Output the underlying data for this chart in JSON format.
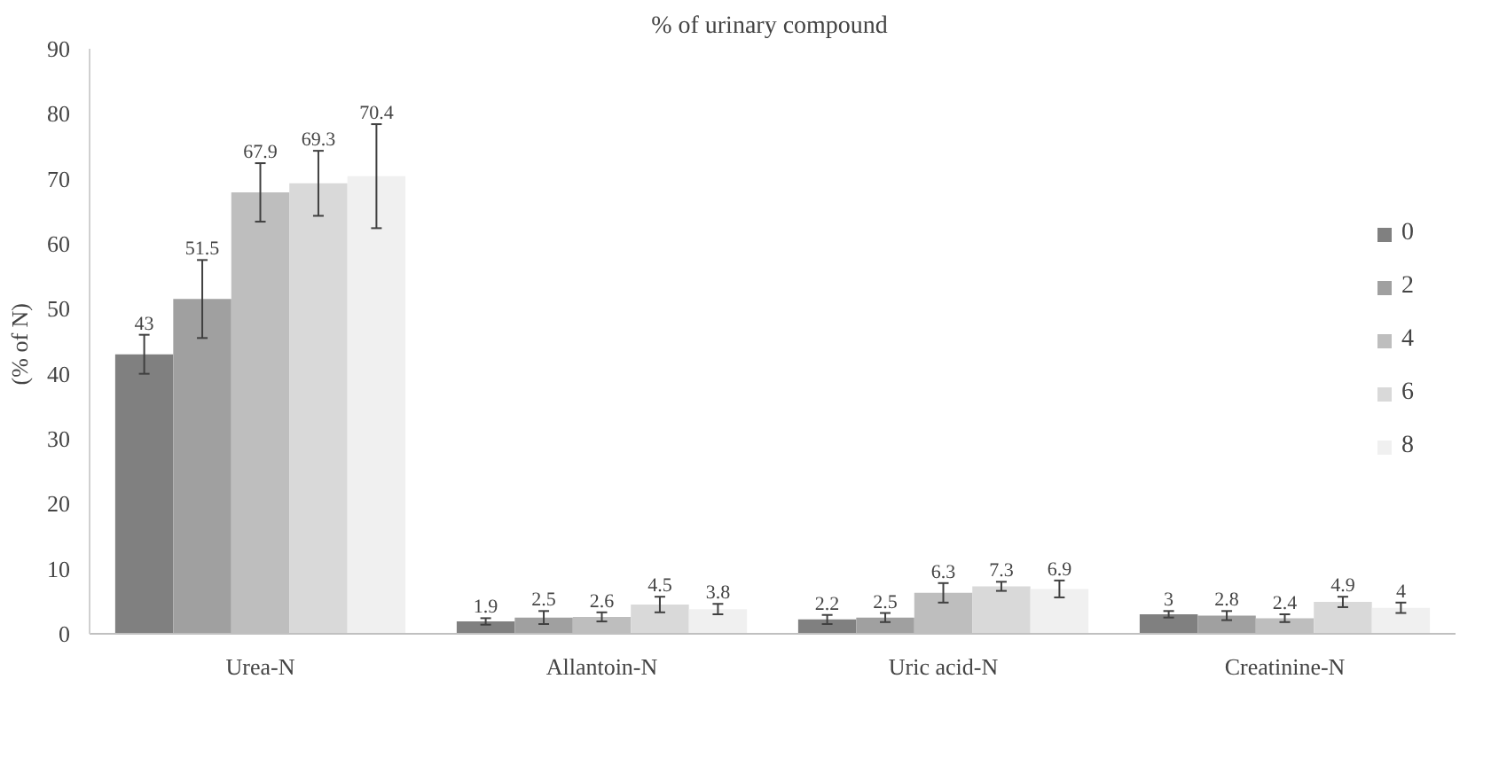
{
  "chart_data": {
    "type": "bar",
    "title": "% of urinary  compound",
    "ylabel": "(% of  N)",
    "categories": [
      "Urea-N",
      "Allantoin-N",
      "Uric acid-N",
      "Creatinine-N"
    ],
    "ylim": [
      0,
      90
    ],
    "yticks": [
      0,
      10,
      20,
      30,
      40,
      50,
      60,
      70,
      80,
      90
    ],
    "grid": false,
    "legend": "right",
    "data_labels": true,
    "series": [
      {
        "name": "0",
        "color": "#808080",
        "values": [
          43,
          1.9,
          2.2,
          3
        ],
        "errors": [
          3,
          0.5,
          0.7,
          0.5
        ]
      },
      {
        "name": "2",
        "color": "#a0a0a0",
        "values": [
          51.5,
          2.5,
          2.5,
          2.8
        ],
        "errors": [
          6,
          1,
          0.7,
          0.7
        ]
      },
      {
        "name": "4",
        "color": "#bebebe",
        "values": [
          67.9,
          2.6,
          6.3,
          2.4
        ],
        "errors": [
          4.5,
          0.7,
          1.5,
          0.6
        ]
      },
      {
        "name": "6",
        "color": "#d9d9d9",
        "values": [
          69.3,
          4.5,
          7.3,
          4.9
        ],
        "errors": [
          5,
          1.2,
          0.7,
          0.8
        ]
      },
      {
        "name": "8",
        "color": "#f0f0f0",
        "values": [
          70.4,
          3.8,
          6.9,
          4
        ],
        "errors": [
          8,
          0.8,
          1.3,
          0.8
        ]
      }
    ]
  }
}
